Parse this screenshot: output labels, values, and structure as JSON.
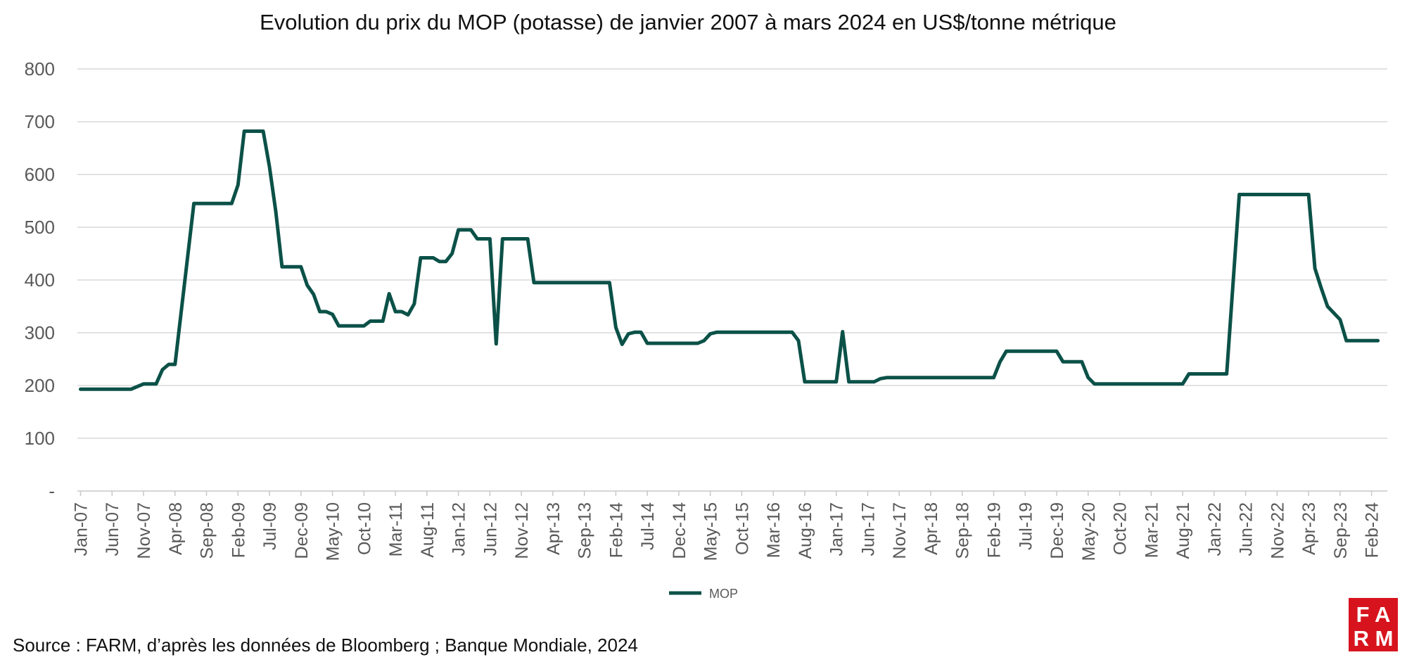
{
  "chart_data": {
    "type": "line",
    "title": "Evolution du prix du MOP (potasse) de janvier 2007 à mars 2024 en US$/tonne métrique",
    "xlabel": "",
    "ylabel": "",
    "ylim": [
      0,
      800
    ],
    "yticks": [
      "-",
      "100",
      "200",
      "300",
      "400",
      "500",
      "600",
      "700",
      "800"
    ],
    "x_tick_labels": [
      "Jan-07",
      "Jun-07",
      "Nov-07",
      "Apr-08",
      "Sep-08",
      "Feb-09",
      "Jul-09",
      "Dec-09",
      "May-10",
      "Oct-10",
      "Mar-11",
      "Aug-11",
      "Jan-12",
      "Jun-12",
      "Nov-12",
      "Apr-13",
      "Sep-13",
      "Feb-14",
      "Jul-14",
      "Dec-14",
      "May-15",
      "Oct-15",
      "Mar-16",
      "Aug-16",
      "Jan-17",
      "Jun-17",
      "Nov-17",
      "Apr-18",
      "Sep-18",
      "Feb-19",
      "Jul-19",
      "Dec-19",
      "May-20",
      "Oct-20",
      "Mar-21",
      "Aug-21",
      "Jan-22",
      "Jun-22",
      "Nov-22",
      "Apr-23",
      "Sep-23",
      "Feb-24"
    ],
    "grid": true,
    "legend_position": "bottom",
    "series": [
      {
        "name": "MOP",
        "color": "#0b5148",
        "points": [
          [
            "2007-01",
            193
          ],
          [
            "2007-09",
            193
          ],
          [
            "2007-11",
            203
          ],
          [
            "2008-01",
            203
          ],
          [
            "2008-02",
            230
          ],
          [
            "2008-03",
            240
          ],
          [
            "2008-04",
            240
          ],
          [
            "2008-07",
            545
          ],
          [
            "2009-01",
            545
          ],
          [
            "2009-02",
            580
          ],
          [
            "2009-03",
            682
          ],
          [
            "2009-06",
            682
          ],
          [
            "2009-07",
            615
          ],
          [
            "2009-08",
            530
          ],
          [
            "2009-09",
            425
          ],
          [
            "2009-11",
            425
          ],
          [
            "2009-12",
            425
          ],
          [
            "2010-01",
            390
          ],
          [
            "2010-02",
            373
          ],
          [
            "2010-03",
            340
          ],
          [
            "2010-04",
            340
          ],
          [
            "2010-05",
            335
          ],
          [
            "2010-06",
            313
          ],
          [
            "2010-10",
            313
          ],
          [
            "2010-11",
            322
          ],
          [
            "2011-01",
            322
          ],
          [
            "2011-02",
            374
          ],
          [
            "2011-03",
            340
          ],
          [
            "2011-04",
            340
          ],
          [
            "2011-05",
            334
          ],
          [
            "2011-06",
            355
          ],
          [
            "2011-07",
            442
          ],
          [
            "2011-09",
            442
          ],
          [
            "2011-10",
            435
          ],
          [
            "2011-11",
            435
          ],
          [
            "2011-12",
            450
          ],
          [
            "2012-01",
            495
          ],
          [
            "2012-03",
            495
          ],
          [
            "2012-04",
            478
          ],
          [
            "2012-06",
            478
          ],
          [
            "2012-07",
            279
          ],
          [
            "2012-08",
            478
          ],
          [
            "2012-12",
            478
          ],
          [
            "2013-01",
            395
          ],
          [
            "2014-01",
            395
          ],
          [
            "2014-02",
            310
          ],
          [
            "2014-03",
            278
          ],
          [
            "2014-04",
            298
          ],
          [
            "2014-05",
            301
          ],
          [
            "2014-06",
            301
          ],
          [
            "2014-07",
            280
          ],
          [
            "2015-03",
            280
          ],
          [
            "2015-04",
            285
          ],
          [
            "2015-05",
            298
          ],
          [
            "2015-06",
            301
          ],
          [
            "2016-06",
            301
          ],
          [
            "2016-07",
            285
          ],
          [
            "2016-08",
            207
          ],
          [
            "2017-01",
            207
          ],
          [
            "2017-02",
            302
          ],
          [
            "2017-03",
            207
          ],
          [
            "2017-07",
            207
          ],
          [
            "2017-08",
            213
          ],
          [
            "2017-09",
            215
          ],
          [
            "2019-02",
            215
          ],
          [
            "2019-03",
            245
          ],
          [
            "2019-04",
            265
          ],
          [
            "2019-12",
            265
          ],
          [
            "2020-01",
            245
          ],
          [
            "2020-04",
            245
          ],
          [
            "2020-05",
            215
          ],
          [
            "2020-06",
            203
          ],
          [
            "2021-08",
            203
          ],
          [
            "2021-09",
            222
          ],
          [
            "2022-03",
            222
          ],
          [
            "2022-05",
            562
          ],
          [
            "2023-04",
            562
          ],
          [
            "2023-05",
            422
          ],
          [
            "2023-06",
            385
          ],
          [
            "2023-07",
            350
          ],
          [
            "2023-09",
            325
          ],
          [
            "2023-10",
            285
          ],
          [
            "2024-03",
            285
          ]
        ]
      }
    ]
  },
  "legend": {
    "label": "MOP"
  },
  "source": "Source : FARM, d’après les données de Bloomberg ; Banque Mondiale, 2024",
  "logo": {
    "line1": "F A",
    "line2": "R M",
    "color": "#d7141e"
  }
}
